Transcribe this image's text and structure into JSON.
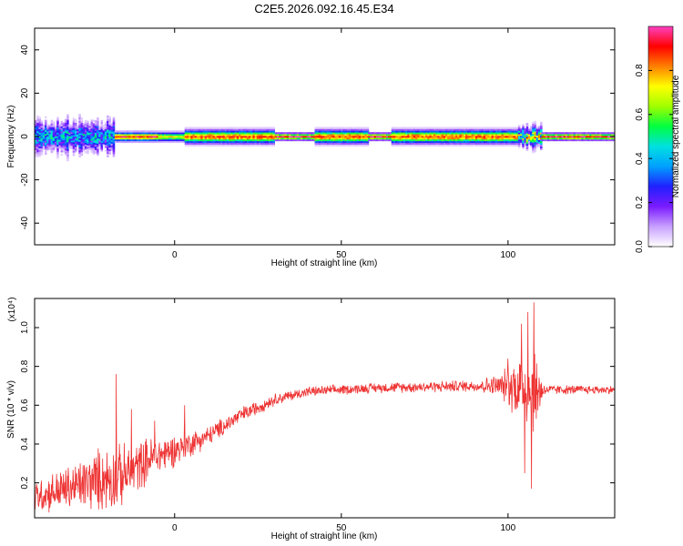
{
  "title": "C2E5.2026.092.16.45.E34",
  "chart_data": [
    {
      "type": "heatmap",
      "xlabel": "Height of straight line (km)",
      "ylabel": "Frequency (Hz)",
      "xlim": [
        -42,
        132
      ],
      "ylim": [
        -50,
        50
      ],
      "xticks": [
        0,
        50,
        100
      ],
      "yticks": [
        -40,
        -20,
        0,
        20,
        40
      ],
      "colorbar": {
        "label": "Normalized spectral amplitude",
        "range": [
          0,
          1
        ],
        "ticks": [
          "0.0",
          "0.2",
          "0.4",
          "0.6",
          "0.8"
        ],
        "tick_values": [
          0,
          0.2,
          0.4,
          0.6,
          0.8
        ],
        "colormap": [
          "#ffffff",
          "#c8a0ff",
          "#7a1bff",
          "#2020ff",
          "#00a0ff",
          "#00e0e0",
          "#00ff40",
          "#a0ff00",
          "#ffff00",
          "#ff8000",
          "#ff0000",
          "#ff40c0"
        ]
      },
      "band": {
        "center_hz": 0,
        "core_halfwidth_hz": 1,
        "x_segments": [
          {
            "x": [
              -42,
              -18
            ],
            "halfwidth_hz": 6,
            "peak": 0.45,
            "noisy": true
          },
          {
            "x": [
              -18,
              -5
            ],
            "halfwidth_hz": 2,
            "peak": 0.95,
            "noisy": false
          },
          {
            "x": [
              -5,
              3
            ],
            "halfwidth_hz": 2,
            "peak": 0.75,
            "noisy": false
          },
          {
            "x": [
              3,
              30
            ],
            "halfwidth_hz": 3,
            "peak": 0.9,
            "noisy": false
          },
          {
            "x": [
              30,
              42
            ],
            "halfwidth_hz": 1.5,
            "peak": 1.0,
            "noisy": false
          },
          {
            "x": [
              42,
              58
            ],
            "halfwidth_hz": 3,
            "peak": 0.9,
            "noisy": false
          },
          {
            "x": [
              58,
              65
            ],
            "halfwidth_hz": 1.5,
            "peak": 1.0,
            "noisy": false
          },
          {
            "x": [
              65,
              103
            ],
            "halfwidth_hz": 3,
            "peak": 0.9,
            "noisy": false
          },
          {
            "x": [
              103,
              110
            ],
            "halfwidth_hz": 4,
            "peak": 0.7,
            "noisy": true
          },
          {
            "x": [
              110,
              132
            ],
            "halfwidth_hz": 1.5,
            "peak": 1.0,
            "noisy": false
          }
        ]
      }
    },
    {
      "type": "line",
      "xlabel": "Height of straight line (km)",
      "ylabel": "SNR (10 * v/v)",
      "y_multiplier": "(x10⁴)",
      "xlim": [
        -42,
        132
      ],
      "ylim": [
        0.02,
        1.15
      ],
      "xticks": [
        0,
        50,
        100
      ],
      "yticks": [
        0.2,
        0.4,
        0.6,
        0.8,
        1.0
      ],
      "ytick_labels": [
        "0.2",
        "0.4",
        "0.6",
        "0.8",
        "1.0"
      ],
      "series": [
        {
          "color": "#ee3333",
          "envelope": [
            {
              "x": -42,
              "mean": 0.13,
              "noise": 0.08
            },
            {
              "x": -30,
              "mean": 0.18,
              "noise": 0.12
            },
            {
              "x": -22,
              "mean": 0.22,
              "noise": 0.16
            },
            {
              "x": -15,
              "mean": 0.24,
              "noise": 0.15
            },
            {
              "x": -8,
              "mean": 0.32,
              "noise": 0.11
            },
            {
              "x": 0,
              "mean": 0.37,
              "noise": 0.08
            },
            {
              "x": 10,
              "mean": 0.44,
              "noise": 0.05
            },
            {
              "x": 20,
              "mean": 0.55,
              "noise": 0.04
            },
            {
              "x": 30,
              "mean": 0.63,
              "noise": 0.03
            },
            {
              "x": 40,
              "mean": 0.67,
              "noise": 0.025
            },
            {
              "x": 60,
              "mean": 0.69,
              "noise": 0.025
            },
            {
              "x": 90,
              "mean": 0.7,
              "noise": 0.03
            },
            {
              "x": 98,
              "mean": 0.7,
              "noise": 0.06
            },
            {
              "x": 103,
              "mean": 0.7,
              "noise": 0.17
            },
            {
              "x": 108,
              "mean": 0.68,
              "noise": 0.22
            },
            {
              "x": 111,
              "mean": 0.68,
              "noise": 0.025
            },
            {
              "x": 132,
              "mean": 0.68,
              "noise": 0.02
            }
          ],
          "spikes": [
            {
              "x": -17.5,
              "y": 0.76
            },
            {
              "x": -19,
              "y": 0.08
            },
            {
              "x": -13,
              "y": 0.58
            },
            {
              "x": -6,
              "y": 0.52
            },
            {
              "x": 3,
              "y": 0.6
            },
            {
              "x": 100,
              "y": 0.84
            },
            {
              "x": 104,
              "y": 1.02
            },
            {
              "x": 105,
              "y": 0.25
            },
            {
              "x": 106,
              "y": 1.08
            },
            {
              "x": 107,
              "y": 0.17
            },
            {
              "x": 107.8,
              "y": 1.13
            },
            {
              "x": 108.5,
              "y": 0.53
            }
          ]
        }
      ]
    }
  ]
}
